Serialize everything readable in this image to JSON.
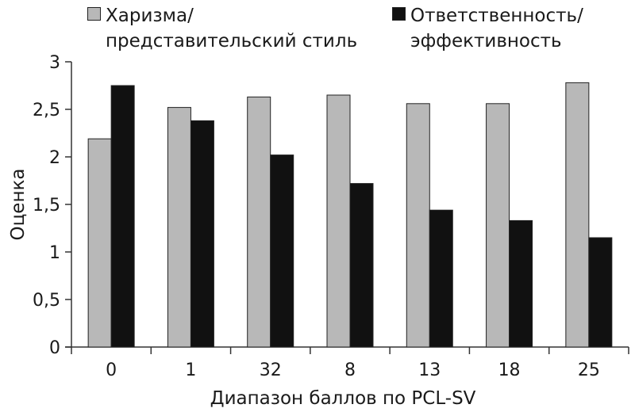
{
  "chart_data": {
    "type": "bar",
    "title": "",
    "xlabel": "Диапазон баллов по PCL-SV",
    "ylabel": "Оценка",
    "ylim": [
      0,
      3
    ],
    "yticks": [
      0,
      0.5,
      1,
      1.5,
      2,
      2.5,
      3
    ],
    "ytick_labels": [
      "0",
      "0,5",
      "1",
      "1,5",
      "2",
      "2,5",
      "3"
    ],
    "categories": [
      "0",
      "1",
      "32",
      "8",
      "13",
      "18",
      "25"
    ],
    "series": [
      {
        "name": "Харизма/ представительский стиль",
        "name_lines": [
          "Харизма/",
          "представительский стиль"
        ],
        "color": "#b8b8b8",
        "values": [
          2.19,
          2.52,
          2.63,
          2.65,
          2.56,
          2.56,
          2.78
        ]
      },
      {
        "name": "Ответственность/ эффективность",
        "name_lines": [
          "Ответственность/",
          "эффективность"
        ],
        "color": "#111111",
        "values": [
          2.75,
          2.38,
          2.02,
          1.72,
          1.44,
          1.33,
          1.15
        ]
      }
    ],
    "grid": false,
    "legend_position": "top"
  }
}
